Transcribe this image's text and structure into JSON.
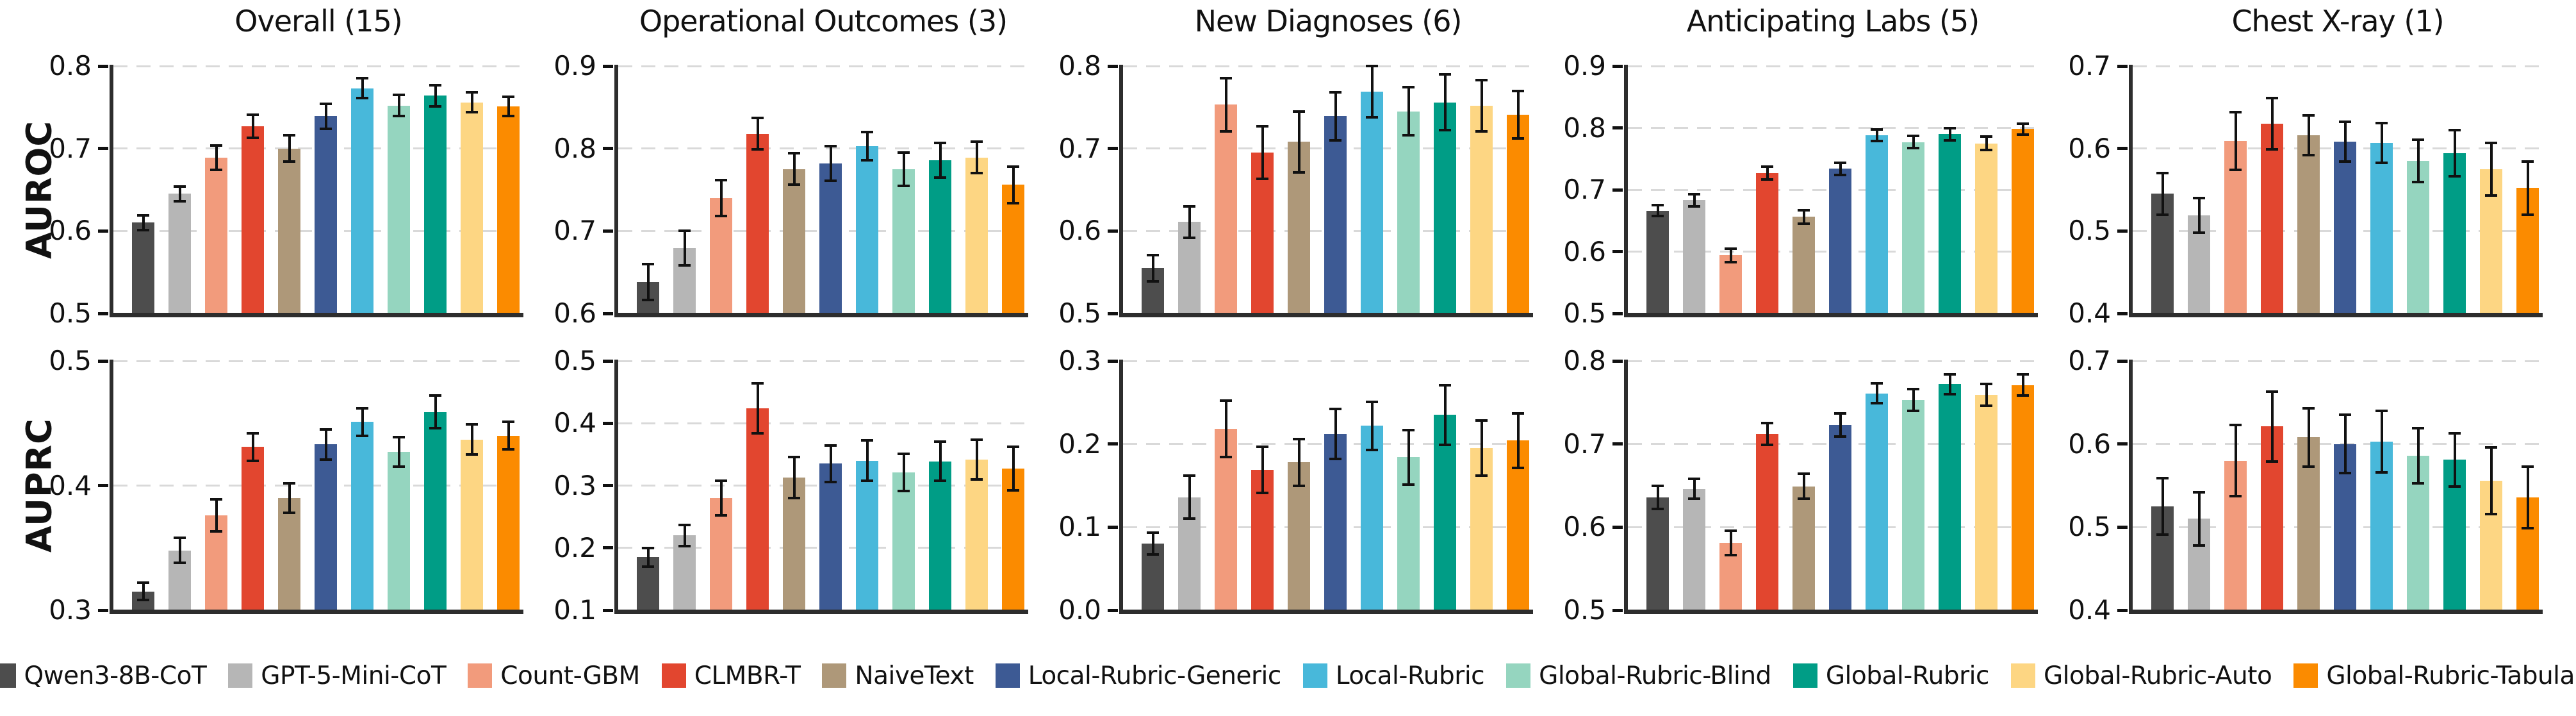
{
  "figure": {
    "row_labels": [
      "AUROC",
      "AUPRC"
    ],
    "column_titles": [
      "Overall (15)",
      "Operational Outcomes (3)",
      "New Diagnoses (6)",
      "Anticipating Labs (5)",
      "Chest X-ray (1)"
    ]
  },
  "chart_data": {
    "type": "bar",
    "layout": "2 rows x 5 columns of grouped bar panels with error bars, shared legend bottom",
    "legend_position": "bottom",
    "grid": "dashed horizontal gridlines at y ticks",
    "models": [
      {
        "name": "Qwen3-8B-CoT",
        "color": "#4d4d4d"
      },
      {
        "name": "GPT-5-Mini-CoT",
        "color": "#b6b6b6"
      },
      {
        "name": "Count-GBM",
        "color": "#f29b7c"
      },
      {
        "name": "CLMBR-T",
        "color": "#e2462f"
      },
      {
        "name": "NaiveText",
        "color": "#ae9879"
      },
      {
        "name": "Local-Rubric-Generic",
        "color": "#3d5a94"
      },
      {
        "name": "Local-Rubric",
        "color": "#48b8da"
      },
      {
        "name": "Global-Rubric-Blind",
        "color": "#95d5bf"
      },
      {
        "name": "Global-Rubric",
        "color": "#009d86"
      },
      {
        "name": "Global-Rubric-Auto",
        "color": "#fdd683"
      },
      {
        "name": "Global-Rubric-Tabular",
        "color": "#fb8b00"
      }
    ],
    "rows": [
      {
        "metric": "AUROC",
        "panels": [
          {
            "title": "Overall (15)",
            "ylim": [
              0.5,
              0.8
            ],
            "yticks": [
              "0.8",
              "0.7",
              "0.6",
              "0.5"
            ],
            "values": [
              0.61,
              0.645,
              0.689,
              0.727,
              0.7,
              0.739,
              0.773,
              0.752,
              0.764,
              0.756,
              0.751
            ],
            "errors": [
              0.009,
              0.009,
              0.015,
              0.014,
              0.016,
              0.015,
              0.012,
              0.013,
              0.013,
              0.012,
              0.012
            ]
          },
          {
            "title": "Operational Outcomes (3)",
            "ylim": [
              0.6,
              0.9
            ],
            "yticks": [
              "0.9",
              "0.8",
              "0.7",
              "0.6"
            ],
            "values": [
              0.638,
              0.679,
              0.74,
              0.818,
              0.775,
              0.782,
              0.803,
              0.775,
              0.786,
              0.789,
              0.756
            ],
            "errors": [
              0.022,
              0.021,
              0.022,
              0.019,
              0.019,
              0.021,
              0.017,
              0.02,
              0.021,
              0.019,
              0.022
            ]
          },
          {
            "title": "New Diagnoses (6)",
            "ylim": [
              0.5,
              0.8
            ],
            "yticks": [
              "0.8",
              "0.7",
              "0.6",
              "0.5"
            ],
            "values": [
              0.555,
              0.611,
              0.753,
              0.695,
              0.708,
              0.739,
              0.769,
              0.745,
              0.756,
              0.752,
              0.741
            ],
            "errors": [
              0.016,
              0.019,
              0.032,
              0.032,
              0.037,
              0.029,
              0.031,
              0.029,
              0.034,
              0.031,
              0.029
            ]
          },
          {
            "title": "Anticipating Labs (5)",
            "ylim": [
              0.5,
              0.9
            ],
            "yticks": [
              "0.9",
              "0.8",
              "0.7",
              "0.6",
              "0.5"
            ],
            "values": [
              0.666,
              0.683,
              0.594,
              0.727,
              0.656,
              0.734,
              0.788,
              0.777,
              0.79,
              0.775,
              0.798
            ],
            "errors": [
              0.009,
              0.01,
              0.011,
              0.01,
              0.011,
              0.01,
              0.009,
              0.01,
              0.01,
              0.011,
              0.009
            ]
          },
          {
            "title": "Chest X-ray (1)",
            "ylim": [
              0.4,
              0.7
            ],
            "yticks": [
              "0.7",
              "0.6",
              "0.5",
              "0.4"
            ],
            "values": [
              0.545,
              0.519,
              0.609,
              0.63,
              0.616,
              0.608,
              0.607,
              0.585,
              0.594,
              0.575,
              0.552
            ],
            "errors": [
              0.025,
              0.021,
              0.035,
              0.031,
              0.024,
              0.024,
              0.024,
              0.026,
              0.028,
              0.032,
              0.032
            ]
          }
        ]
      },
      {
        "metric": "AUPRC",
        "panels": [
          {
            "title": "",
            "ylim": [
              0.3,
              0.5
            ],
            "yticks": [
              "0.5",
              "0.4",
              "0.3"
            ],
            "values": [
              0.315,
              0.348,
              0.376,
              0.431,
              0.39,
              0.433,
              0.451,
              0.427,
              0.459,
              0.437,
              0.44
            ],
            "errors": [
              0.007,
              0.01,
              0.013,
              0.011,
              0.012,
              0.012,
              0.011,
              0.012,
              0.013,
              0.012,
              0.011
            ]
          },
          {
            "title": "",
            "ylim": [
              0.1,
              0.5
            ],
            "yticks": [
              "0.5",
              "0.4",
              "0.3",
              "0.2",
              "0.1"
            ],
            "values": [
              0.185,
              0.22,
              0.28,
              0.424,
              0.313,
              0.335,
              0.34,
              0.321,
              0.339,
              0.342,
              0.327
            ],
            "errors": [
              0.015,
              0.017,
              0.028,
              0.04,
              0.033,
              0.029,
              0.032,
              0.03,
              0.031,
              0.032,
              0.035
            ]
          },
          {
            "title": "",
            "ylim": [
              0.0,
              0.3
            ],
            "yticks": [
              "0.3",
              "0.2",
              "0.1",
              "0.0"
            ],
            "values": [
              0.08,
              0.136,
              0.218,
              0.169,
              0.178,
              0.212,
              0.222,
              0.184,
              0.235,
              0.195,
              0.204
            ],
            "errors": [
              0.013,
              0.026,
              0.034,
              0.028,
              0.028,
              0.03,
              0.029,
              0.033,
              0.036,
              0.033,
              0.033
            ]
          },
          {
            "title": "",
            "ylim": [
              0.5,
              0.8
            ],
            "yticks": [
              "0.8",
              "0.7",
              "0.6",
              "0.5"
            ],
            "values": [
              0.636,
              0.646,
              0.581,
              0.712,
              0.649,
              0.723,
              0.761,
              0.753,
              0.772,
              0.759,
              0.771
            ],
            "errors": [
              0.014,
              0.012,
              0.015,
              0.013,
              0.015,
              0.014,
              0.012,
              0.013,
              0.012,
              0.013,
              0.013
            ]
          },
          {
            "title": "",
            "ylim": [
              0.4,
              0.7
            ],
            "yticks": [
              "0.7",
              "0.6",
              "0.5",
              "0.4"
            ],
            "values": [
              0.525,
              0.51,
              0.58,
              0.621,
              0.608,
              0.6,
              0.603,
              0.586,
              0.581,
              0.556,
              0.536
            ],
            "errors": [
              0.034,
              0.032,
              0.043,
              0.042,
              0.035,
              0.035,
              0.037,
              0.033,
              0.032,
              0.04,
              0.037
            ]
          }
        ]
      }
    ]
  }
}
